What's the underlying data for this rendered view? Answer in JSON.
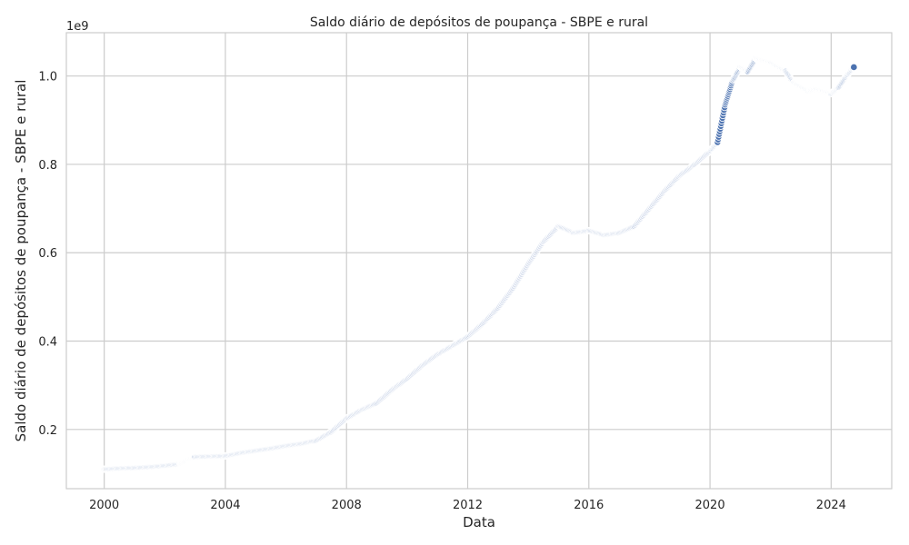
{
  "chart_data": {
    "type": "scatter",
    "title": "Saldo diário de depósitos de poupança - SBPE e rural",
    "xlabel": "Data",
    "ylabel": "Saldo diário de depósitos de poupança - SBPE e rural",
    "y_offset_label": "1e9",
    "xlim": [
      1998.75,
      2026.0
    ],
    "ylim": [
      0.066,
      1.098
    ],
    "x_ticks": [
      2000,
      2004,
      2008,
      2012,
      2016,
      2020,
      2024
    ],
    "x_tick_labels": [
      "2000",
      "2004",
      "2008",
      "2012",
      "2016",
      "2020",
      "2024"
    ],
    "y_ticks": [
      0.2,
      0.4,
      0.6,
      0.8,
      1.0
    ],
    "y_tick_labels": [
      "0.2",
      "0.4",
      "0.6",
      "0.8",
      "1.0"
    ],
    "grid": true,
    "marker_color": "#4c72b0",
    "marker_edge_color": "#ffffff",
    "series": [
      {
        "x": [
          2000.0,
          2000.5,
          2001.0,
          2001.5,
          2002.0,
          2002.5,
          2002.75,
          2003.0,
          2003.5,
          2004.0,
          2004.5,
          2005.0,
          2005.5,
          2006.0,
          2006.5,
          2007.0,
          2007.5,
          2008.0,
          2008.5,
          2009.0,
          2009.5,
          2010.0,
          2010.5,
          2011.0,
          2011.5,
          2012.0,
          2012.5,
          2013.0,
          2013.5,
          2014.0,
          2014.5,
          2015.0,
          2015.5,
          2016.0,
          2016.5,
          2017.0,
          2017.5,
          2018.0,
          2018.5,
          2019.0,
          2019.5,
          2020.0,
          2020.25,
          2020.5,
          2020.75,
          2021.0,
          2021.25,
          2021.5,
          2021.75,
          2022.0,
          2022.25,
          2022.5,
          2022.75,
          2023.0,
          2023.25,
          2023.5,
          2023.75,
          2024.0,
          2024.25,
          2024.5,
          2024.75
        ],
        "y": [
          0.11,
          0.112,
          0.113,
          0.115,
          0.118,
          0.122,
          0.132,
          0.138,
          0.139,
          0.14,
          0.147,
          0.152,
          0.157,
          0.163,
          0.168,
          0.175,
          0.195,
          0.225,
          0.245,
          0.26,
          0.29,
          0.315,
          0.345,
          0.37,
          0.39,
          0.41,
          0.44,
          0.475,
          0.52,
          0.575,
          0.625,
          0.66,
          0.645,
          0.65,
          0.64,
          0.645,
          0.66,
          0.7,
          0.74,
          0.775,
          0.8,
          0.83,
          0.85,
          0.935,
          0.99,
          1.02,
          1.01,
          1.04,
          1.035,
          1.03,
          1.02,
          1.01,
          0.985,
          0.975,
          0.965,
          0.97,
          0.965,
          0.96,
          0.975,
          1.0,
          1.02
        ]
      }
    ]
  }
}
